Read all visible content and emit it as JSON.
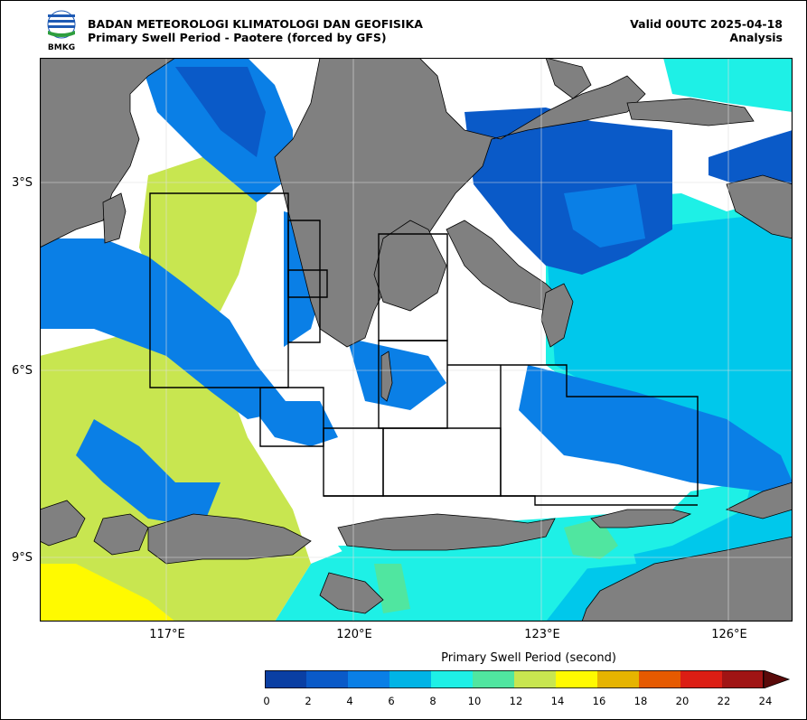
{
  "header": {
    "logo_text": "BMKG",
    "agency": "BADAN METEOROLOGI KLIMATOLOGI DAN GEOFISIKA",
    "product": "Primary Swell Period - Paotere (forced by GFS)",
    "valid": "Valid 00UTC 2025-04-18",
    "analysis": "Analysis"
  },
  "map": {
    "lat_labels": [
      "3°S",
      "6°S",
      "9°S"
    ],
    "lon_labels": [
      "117°E",
      "120°E",
      "123°E",
      "126°E"
    ],
    "land_color": "#808080",
    "grid": true
  },
  "colorbar": {
    "title": "Primary Swell Period (second)",
    "ticks": [
      "0",
      "2",
      "4",
      "6",
      "8",
      "10",
      "12",
      "14",
      "16",
      "18",
      "20",
      "22",
      "24"
    ],
    "colors": [
      "#0a3fa3",
      "#0a5ac8",
      "#0a7fe6",
      "#00b4e6",
      "#1ef0e6",
      "#50e6a0",
      "#c8e650",
      "#fffa00",
      "#e6b400",
      "#e65a00",
      "#dc1e14",
      "#a01414"
    ],
    "extend_color": "#5a0a0a"
  }
}
